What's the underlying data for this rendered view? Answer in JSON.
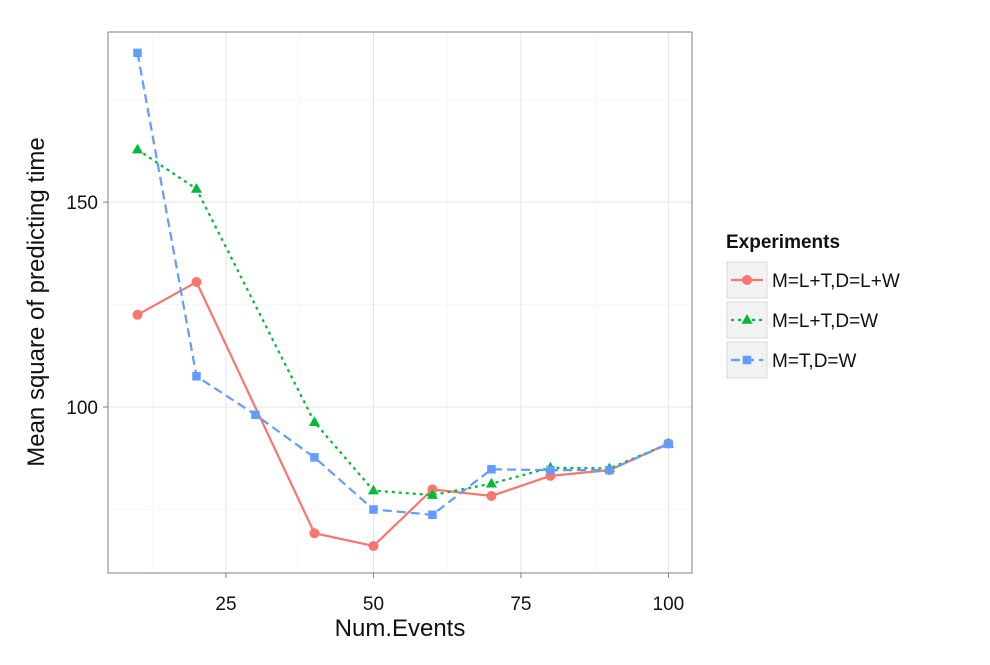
{
  "chart_data": {
    "type": "line",
    "xlabel": "Num.Events",
    "ylabel": "Mean square of predicting time",
    "xlim": [
      5,
      104
    ],
    "ylim": [
      59.5,
      191.5
    ],
    "x_ticks": [
      25,
      50,
      75,
      100
    ],
    "y_ticks": [
      100,
      150
    ],
    "grid": true,
    "legend": {
      "title": "Experiments",
      "position": "right"
    },
    "series": [
      {
        "name": "M=L+T,D=L+W",
        "color": "#f8766d",
        "marker": "circle",
        "dash": "solid",
        "x": [
          10,
          20,
          40,
          50,
          60,
          70,
          80,
          90,
          100
        ],
        "y": [
          122.5,
          130.5,
          69.2,
          66.1,
          79.9,
          78.3,
          83.2,
          84.6,
          91.1
        ]
      },
      {
        "name": "M=L+T,D=W",
        "color": "#00ba38",
        "marker": "triangle",
        "dash": "dotted",
        "x": [
          10,
          20,
          40,
          50,
          60,
          70,
          80,
          90,
          100
        ],
        "y": [
          162.8,
          153.2,
          96.3,
          79.6,
          78.5,
          81.3,
          85.2,
          85.0,
          91.0
        ]
      },
      {
        "name": "M=T,D=W",
        "color": "#619cff",
        "marker": "square",
        "dash": "dashed",
        "x": [
          10,
          20,
          30,
          40,
          50,
          60,
          70,
          80,
          90,
          100
        ],
        "y": [
          186.4,
          107.5,
          98.1,
          87.7,
          75.0,
          73.7,
          84.8,
          84.6,
          84.6,
          91.0
        ]
      }
    ]
  }
}
